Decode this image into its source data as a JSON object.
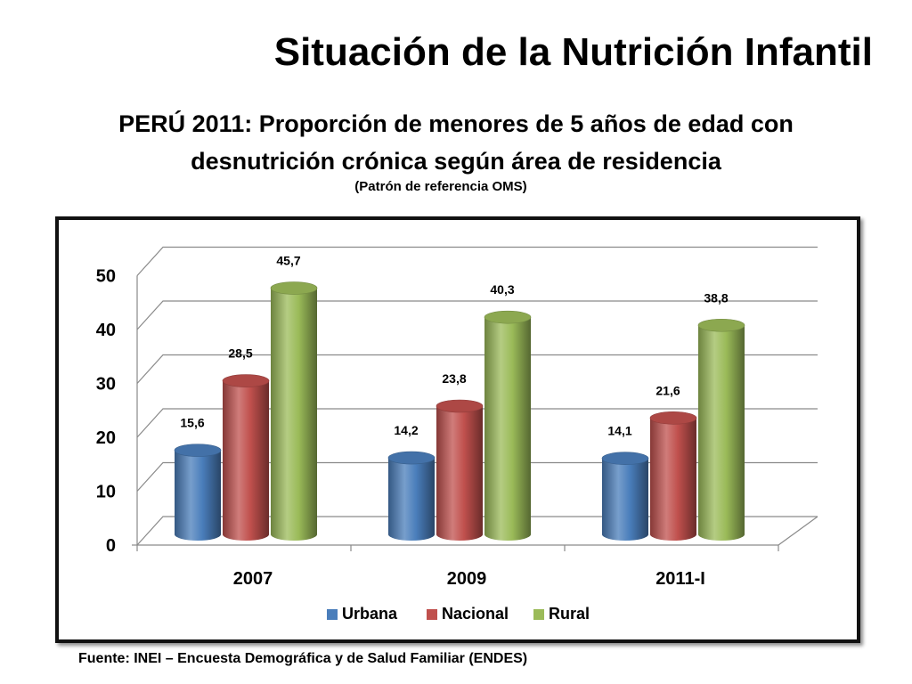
{
  "slide": {
    "title": "Situación de la Nutrición Infantil",
    "subtitle_line1": "PERÚ 2011: Proporción de menores de 5 años de edad con",
    "subtitle_line2": "desnutrición crónica según área de residencia",
    "note": "(Patrón de referencia OMS)",
    "source": "Fuente: INEI – Encuesta Demográfica y de Salud Familiar (ENDES)"
  },
  "chart_data": {
    "type": "bar",
    "style": "3d-cylinder",
    "categories": [
      "2007",
      "2009",
      "2011-I"
    ],
    "series": [
      {
        "name": "Urbana",
        "values": [
          15.6,
          14.2,
          14.1
        ],
        "labels": [
          "15,6",
          "14,2",
          "14,1"
        ],
        "color": "#4a7ebb"
      },
      {
        "name": "Nacional",
        "values": [
          28.5,
          23.8,
          21.6
        ],
        "labels": [
          "28,5",
          "23,8",
          "21,6"
        ],
        "color": "#c0504d"
      },
      {
        "name": "Rural",
        "values": [
          45.7,
          40.3,
          38.8
        ],
        "labels": [
          "45,7",
          "40,3",
          "38,8"
        ],
        "color": "#9bbb59"
      }
    ],
    "y_ticks": [
      "0",
      "10",
      "20",
      "30",
      "40",
      "50"
    ],
    "ylim": [
      0,
      50
    ],
    "grid": true,
    "legend_position": "bottom"
  }
}
